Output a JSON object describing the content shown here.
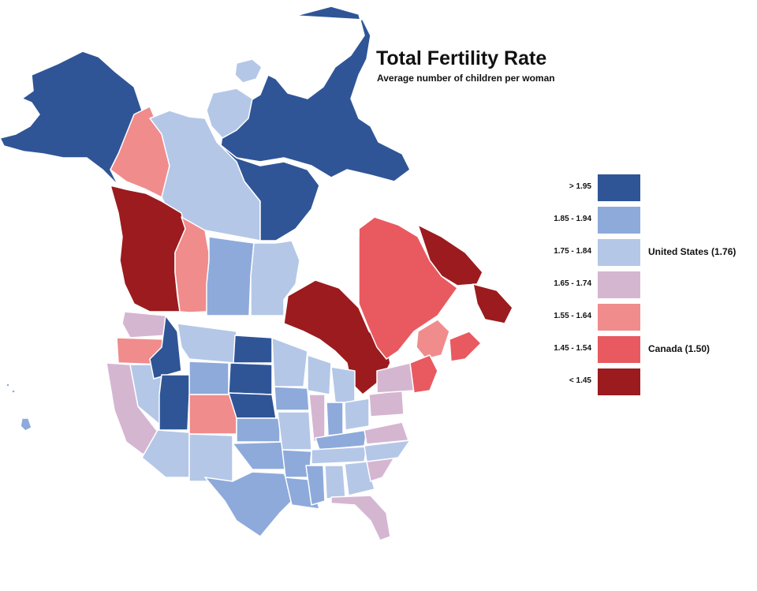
{
  "title": "Total Fertility Rate",
  "subtitle": "Average number of children per woman",
  "colors": {
    "c1": "#2f5597",
    "c2": "#8eaadb",
    "c3": "#b4c7e7",
    "c4": "#d5b6d1",
    "c5": "#f08c8c",
    "c6": "#e85a5f",
    "c7": "#9b1b1e"
  },
  "legend": [
    {
      "label": "> 1.95",
      "color_key": "c1",
      "note": ""
    },
    {
      "label": "1.85 - 1.94",
      "color_key": "c2",
      "note": ""
    },
    {
      "label": "1.75 - 1.84",
      "color_key": "c3",
      "note": "United States (1.76)"
    },
    {
      "label": "1.65 - 1.74",
      "color_key": "c4",
      "note": ""
    },
    {
      "label": "1.55 - 1.64",
      "color_key": "c5",
      "note": ""
    },
    {
      "label": "1.45 - 1.54",
      "color_key": "c6",
      "note": "Canada (1.50)"
    },
    {
      "label": "< 1.45",
      "color_key": "c7",
      "note": ""
    }
  ]
}
